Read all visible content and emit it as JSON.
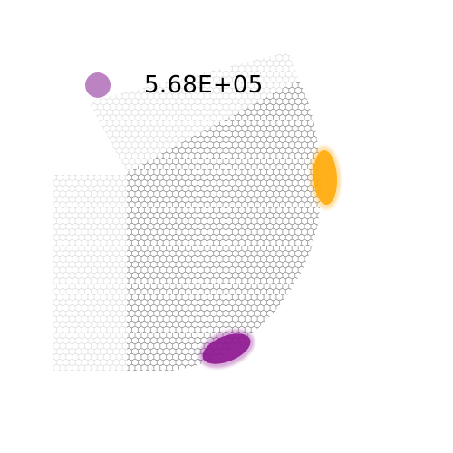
{
  "legend": {
    "label": "5.68E+05",
    "marker_color": "#b87cbf"
  },
  "lattice": {
    "dark_edge_color": "#6a6a6a",
    "light_edge_color": "#d2d2d2"
  },
  "spots": [
    {
      "name": "orange-blob",
      "color": "#ffab0a"
    },
    {
      "name": "purple-blob",
      "color": "#8e1891"
    }
  ]
}
